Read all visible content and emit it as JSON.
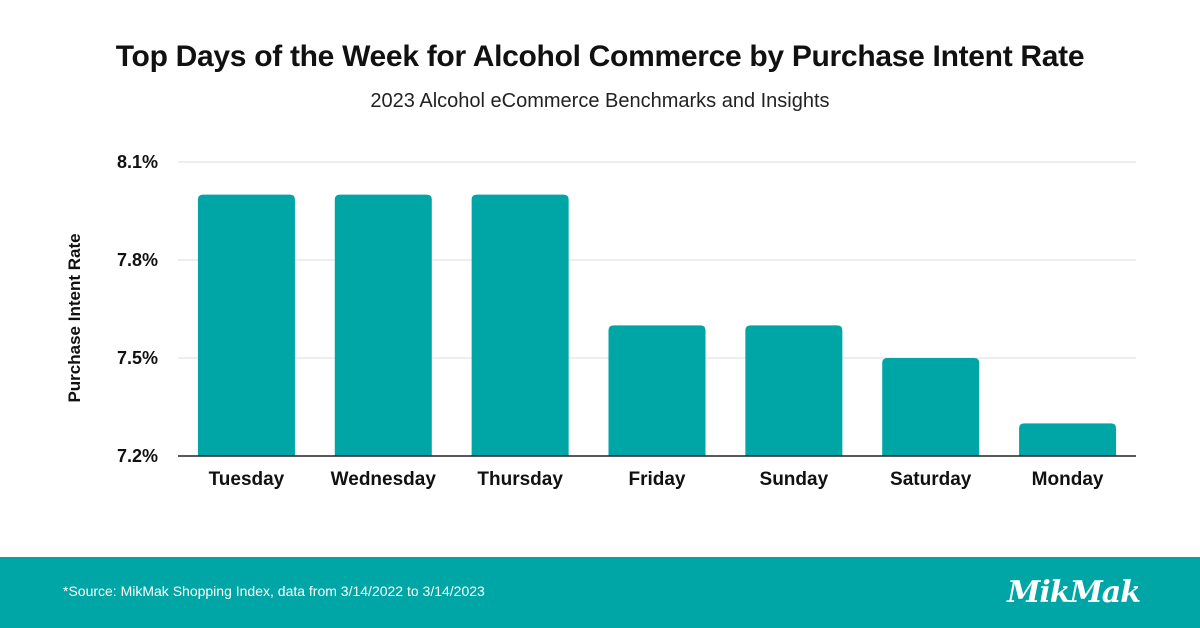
{
  "colors": {
    "bar": "#00a6a6",
    "footer": "#00a6a6",
    "grid": "#dddddd",
    "axis": "#222222"
  },
  "footer": {
    "source": "*Source: MikMak Shopping Index, data from 3/14/2022 to 3/14/2023",
    "logo": "MikMak"
  },
  "chart_data": {
    "type": "bar",
    "title": "Top Days of the Week for Alcohol Commerce by Purchase Intent Rate",
    "subtitle": "2023 Alcohol eCommerce Benchmarks and Insights",
    "ylabel": "Purchase Intent Rate",
    "xlabel": "",
    "categories": [
      "Tuesday",
      "Wednesday",
      "Thursday",
      "Friday",
      "Sunday",
      "Saturday",
      "Monday"
    ],
    "values": [
      8.0,
      8.0,
      8.0,
      7.6,
      7.6,
      7.5,
      7.3
    ],
    "ylim": [
      7.2,
      8.1
    ],
    "yticks": [
      7.2,
      7.5,
      7.8,
      8.1
    ],
    "ytick_labels": [
      "7.2%",
      "7.5%",
      "7.8%",
      "8.1%"
    ],
    "grid": true,
    "legend": "none"
  }
}
